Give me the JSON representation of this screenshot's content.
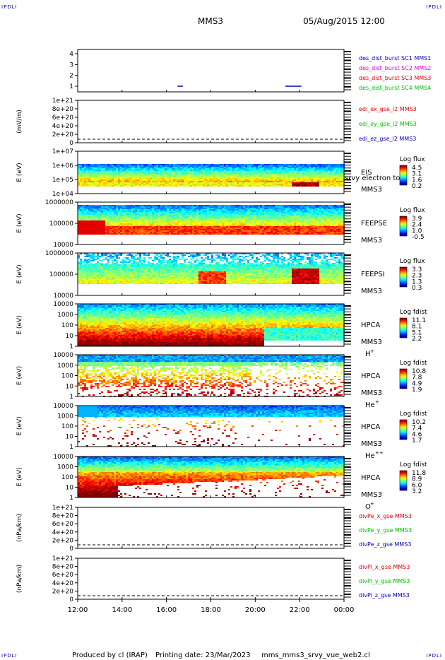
{
  "corners": {
    "tl": "IPDLI",
    "tr": "IPDLI",
    "bl": "IPDLI",
    "br": "IPDLI"
  },
  "header": {
    "mission": "MMS3",
    "datetime": "05/Aug/2015 12:00"
  },
  "footer": {
    "produced": "Produced by cl (IRAP)",
    "printing": "Printing date: 23/Mar/2023",
    "script": "mms_mms3_srvy_vue_web2.cl"
  },
  "colors": {
    "red": "#e00000",
    "magenta": "#e000e0",
    "green": "#00c000",
    "blue": "#0000c0"
  },
  "chart_data": {
    "type": "heatmap",
    "x_ticks": [
      "12:00",
      "14:00",
      "16:00",
      "18:00",
      "20:00",
      "22:00",
      "00:00"
    ],
    "panels": [
      {
        "kind": "burst",
        "yticks": [
          "4",
          "3",
          "2",
          "1"
        ],
        "ylabel": "",
        "legend": [
          {
            "text": "des_dist_burst SC1 MMS1",
            "color": "#0000c0"
          },
          {
            "text": "des_dist_burst SC2 MMS2",
            "color": "#e000e0"
          },
          {
            "text": "des_dist_burst SC3 MMS3",
            "color": "#e00000"
          },
          {
            "text": "des_dist_burst SC4 MMS4",
            "color": "#00c000"
          }
        ]
      },
      {
        "kind": "line",
        "yticks": [
          "1e+21",
          "8e+20",
          "6e+20",
          "4e+20",
          "2e+20",
          "0"
        ],
        "ylabel": "(mV/m)",
        "legend": [
          {
            "text": "edi_ex_gse_l2 MMS3",
            "color": "#e00000"
          },
          {
            "text": "edi_ey_gse_l2 MMS3",
            "color": "#00c000"
          },
          {
            "text": "edi_ez_gse_l2 MMS3",
            "color": "#0000c0"
          }
        ]
      },
      {
        "kind": "spec",
        "yticks": [
          "1e+07",
          "1e+06",
          "1e+05",
          "1e+04"
        ],
        "ylabel": "E (eV)",
        "right1": "EIS",
        "right1b": "srvy electron to",
        "right2": "MMS3",
        "cbtitle": "Log flux",
        "cbvals": [
          "4.5",
          "3.1",
          "1.6",
          "0.2"
        ]
      },
      {
        "kind": "spec",
        "yticks": [
          "1000000",
          "100000",
          "10000"
        ],
        "ylabel": "E (eV)",
        "right1": "FEEPSE",
        "right2": "MMS3",
        "cbtitle": "Log flux",
        "cbvals": [
          "3.9",
          "2.4",
          "1.0",
          "-0.5"
        ]
      },
      {
        "kind": "spec",
        "yticks": [
          "1000000",
          "100000",
          "10000"
        ],
        "ylabel": "E (eV)",
        "right1": "FEEPSI",
        "right2": "MMS3",
        "cbtitle": "Log flux",
        "cbvals": [
          "3.3",
          "2.3",
          "1.3",
          "0.3"
        ]
      },
      {
        "kind": "spec",
        "yticks": [
          "10000",
          "1000",
          "100",
          "10",
          "1"
        ],
        "ylabel": "E (eV)",
        "right1": "HPCA",
        "right2": "MMS3",
        "ion": "H",
        "ionsup": "+",
        "cbtitle": "Log fdist",
        "cbvals": [
          "11.1",
          "8.1",
          "5.1",
          "2.2"
        ]
      },
      {
        "kind": "spec",
        "yticks": [
          "10000",
          "1000",
          "100",
          "10",
          "1"
        ],
        "ylabel": "E (eV)",
        "right1": "HPCA",
        "right2": "MMS3",
        "ion": "He",
        "ionsup": "+",
        "cbtitle": "Log fdist",
        "cbvals": [
          "10.8",
          "7.8",
          "4.9",
          "1.9"
        ]
      },
      {
        "kind": "spec",
        "yticks": [
          "10000",
          "1000",
          "100",
          "10",
          "1"
        ],
        "ylabel": "E (eV)",
        "right1": "HPCA",
        "right2": "MMS3",
        "ion": "He",
        "ionsup": "++",
        "cbtitle": "Log fdist",
        "cbvals": [
          "10.2",
          "7.4",
          "4.6",
          "1.7"
        ]
      },
      {
        "kind": "spec",
        "yticks": [
          "10000",
          "1000",
          "100",
          "10",
          "1"
        ],
        "ylabel": "E (eV)",
        "right1": "HPCA",
        "right2": "MMS3",
        "ion": "O",
        "ionsup": "+",
        "cbtitle": "Log fdist",
        "cbvals": [
          "11.8",
          "8.9",
          "6.0",
          "3.2"
        ]
      },
      {
        "kind": "line",
        "yticks": [
          "1e+21",
          "8e+20",
          "6e+20",
          "4e+20",
          "2e+20",
          "0"
        ],
        "ylabel": "(nPa/km)",
        "legend": [
          {
            "text": "divPe_x_gse MMS3",
            "color": "#e00000"
          },
          {
            "text": "divPe_y_gse MMS3",
            "color": "#00c000"
          },
          {
            "text": "divPe_z_gse MMS3",
            "color": "#0000c0"
          }
        ]
      },
      {
        "kind": "line",
        "yticks": [
          "1e+21",
          "8e+20",
          "6e+20",
          "4e+20",
          "2e+20",
          "0"
        ],
        "ylabel": "(nPa/km)",
        "legend": [
          {
            "text": "divPi_x_gse MMS3",
            "color": "#e00000"
          },
          {
            "text": "divPi_y_gse MMS3",
            "color": "#00c000"
          },
          {
            "text": "divPi_z_gse MMS3",
            "color": "#0000c0"
          }
        ]
      }
    ]
  }
}
